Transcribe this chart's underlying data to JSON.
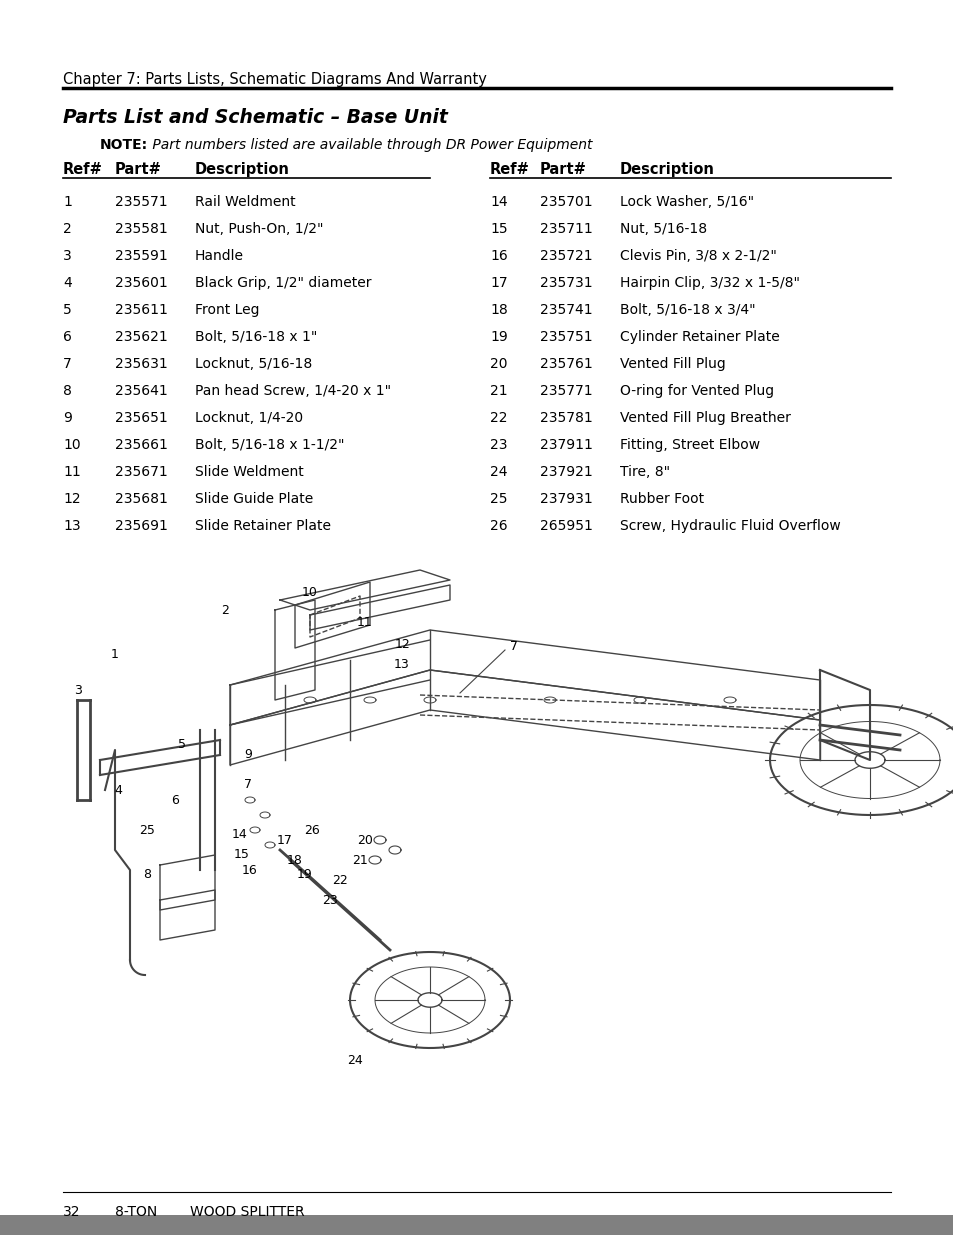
{
  "chapter_header": "Chapter 7: Parts Lists, Schematic Diagrams And Warranty",
  "section_title": "Parts List and Schematic – Base Unit",
  "note_text": "NOTE: Part numbers listed are available through DR Power Equipment",
  "col_headers": [
    "Ref#",
    "Part#",
    "Description",
    "Ref#",
    "Part#",
    "Description"
  ],
  "parts": [
    [
      1,
      "235571",
      "Rail Weldment",
      14,
      "235701",
      "Lock Washer, 5/16\""
    ],
    [
      2,
      "235581",
      "Nut, Push-On, 1/2\"",
      15,
      "235711",
      "Nut, 5/16-18"
    ],
    [
      3,
      "235591",
      "Handle",
      16,
      "235721",
      "Clevis Pin, 3/8 x 2-1/2\""
    ],
    [
      4,
      "235601",
      "Black Grip, 1/2\" diameter",
      17,
      "235731",
      "Hairpin Clip, 3/32 x 1-5/8\""
    ],
    [
      5,
      "235611",
      "Front Leg",
      18,
      "235741",
      "Bolt, 5/16-18 x 3/4\""
    ],
    [
      6,
      "235621",
      "Bolt, 5/16-18 x 1\"",
      19,
      "235751",
      "Cylinder Retainer Plate"
    ],
    [
      7,
      "235631",
      "Locknut, 5/16-18",
      20,
      "235761",
      "Vented Fill Plug"
    ],
    [
      8,
      "235641",
      "Pan head Screw, 1/4-20 x 1\"",
      21,
      "235771",
      "O-ring for Vented Plug"
    ],
    [
      9,
      "235651",
      "Locknut, 1/4-20",
      22,
      "235781",
      "Vented Fill Plug Breather"
    ],
    [
      10,
      "235661",
      "Bolt, 5/16-18 x 1-1/2\"",
      23,
      "237911",
      "Fitting, Street Elbow"
    ],
    [
      11,
      "235671",
      "Slide Weldment",
      24,
      "237921",
      "Tire, 8\""
    ],
    [
      12,
      "235681",
      "Slide Guide Plate",
      25,
      "237931",
      "Rubber Foot"
    ],
    [
      13,
      "235691",
      "Slide Retainer Plate",
      26,
      "265951",
      "Screw, Hydraulic Fluid Overflow"
    ]
  ],
  "footer_page": "32",
  "footer_text1": "8-TON",
  "footer_text2": "WOOD SPLITTER",
  "bg_color": "#ffffff",
  "text_color": "#000000",
  "header_line_color": "#000000",
  "footer_bar_color": "#808080"
}
